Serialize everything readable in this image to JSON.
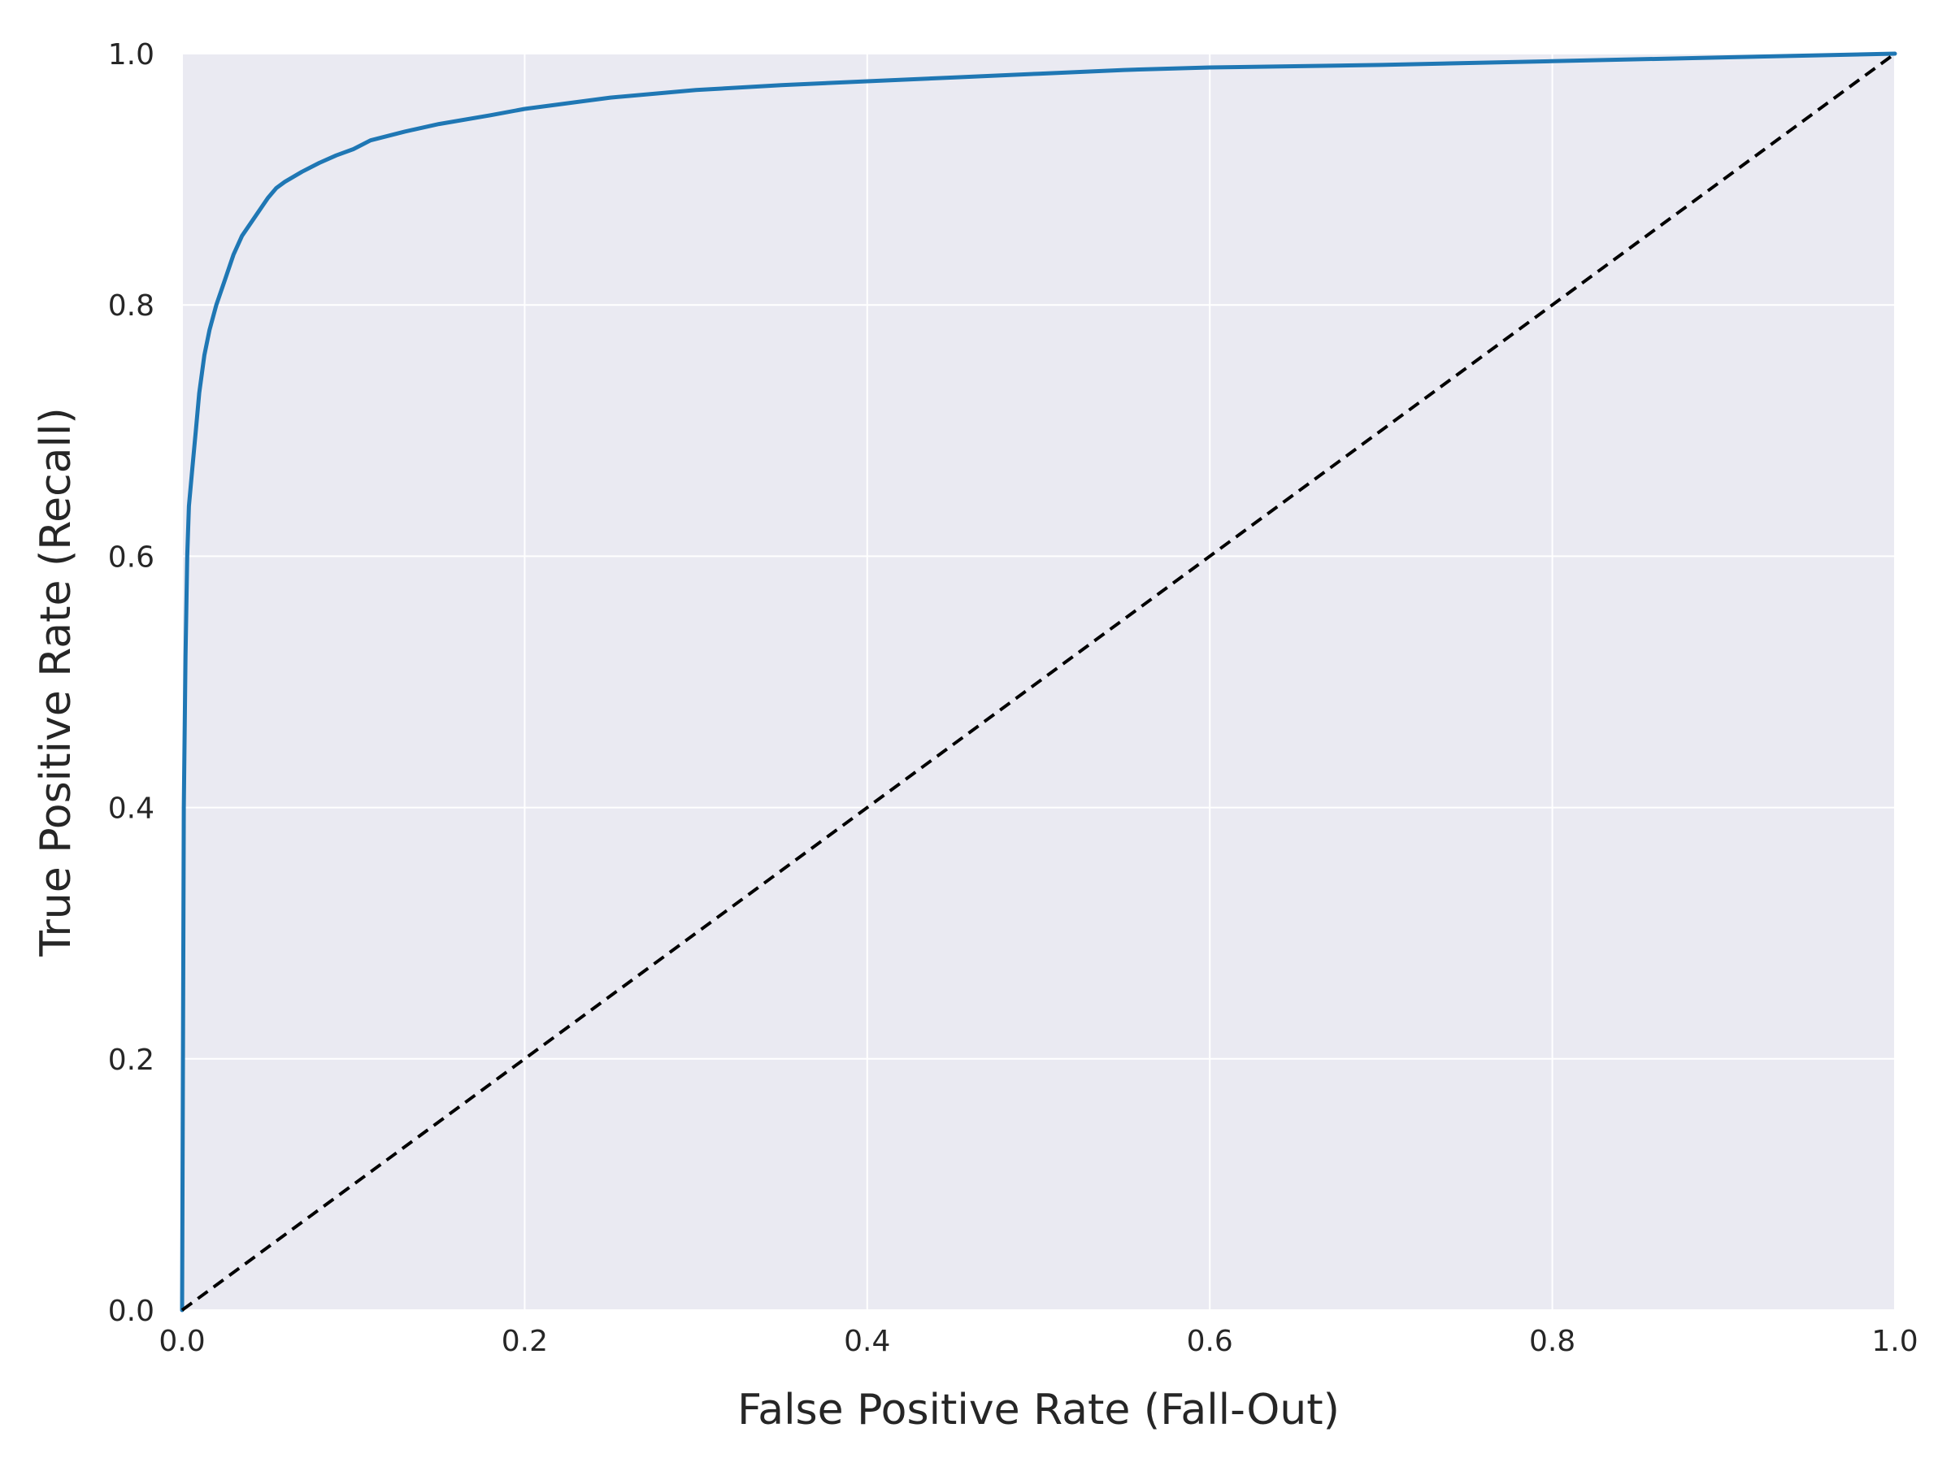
{
  "chart_data": {
    "type": "line",
    "title": "",
    "xlabel": "False Positive Rate (Fall-Out)",
    "ylabel": "True Positive Rate (Recall)",
    "xlim": [
      0,
      1
    ],
    "ylim": [
      0,
      1
    ],
    "xticks": [
      "0.0",
      "0.2",
      "0.4",
      "0.6",
      "0.8",
      "1.0"
    ],
    "yticks": [
      "0.0",
      "0.2",
      "0.4",
      "0.6",
      "0.8",
      "1.0"
    ],
    "grid": true,
    "background_color": "#eaeaf2",
    "grid_color": "#ffffff",
    "series": [
      {
        "color": "#1f77b4",
        "style": "solid",
        "x": [
          0,
          0.001,
          0.002,
          0.003,
          0.004,
          0.006,
          0.008,
          0.01,
          0.013,
          0.016,
          0.02,
          0.025,
          0.03,
          0.035,
          0.04,
          0.045,
          0.05,
          0.055,
          0.06,
          0.07,
          0.08,
          0.09,
          0.1,
          0.11,
          0.13,
          0.15,
          0.18,
          0.2,
          0.25,
          0.3,
          0.35,
          0.4,
          0.45,
          0.5,
          0.55,
          0.6,
          0.7,
          0.8,
          0.9,
          1.0
        ],
        "y": [
          0,
          0.4,
          0.52,
          0.6,
          0.64,
          0.67,
          0.7,
          0.73,
          0.76,
          0.78,
          0.8,
          0.82,
          0.84,
          0.855,
          0.865,
          0.875,
          0.885,
          0.893,
          0.898,
          0.906,
          0.913,
          0.919,
          0.924,
          0.931,
          0.938,
          0.944,
          0.951,
          0.956,
          0.965,
          0.971,
          0.975,
          0.978,
          0.981,
          0.984,
          0.987,
          0.989,
          0.991,
          0.994,
          0.997,
          1.0
        ]
      },
      {
        "color": "#000000",
        "style": "dashed",
        "x": [
          0,
          1
        ],
        "y": [
          0,
          1
        ]
      }
    ]
  }
}
